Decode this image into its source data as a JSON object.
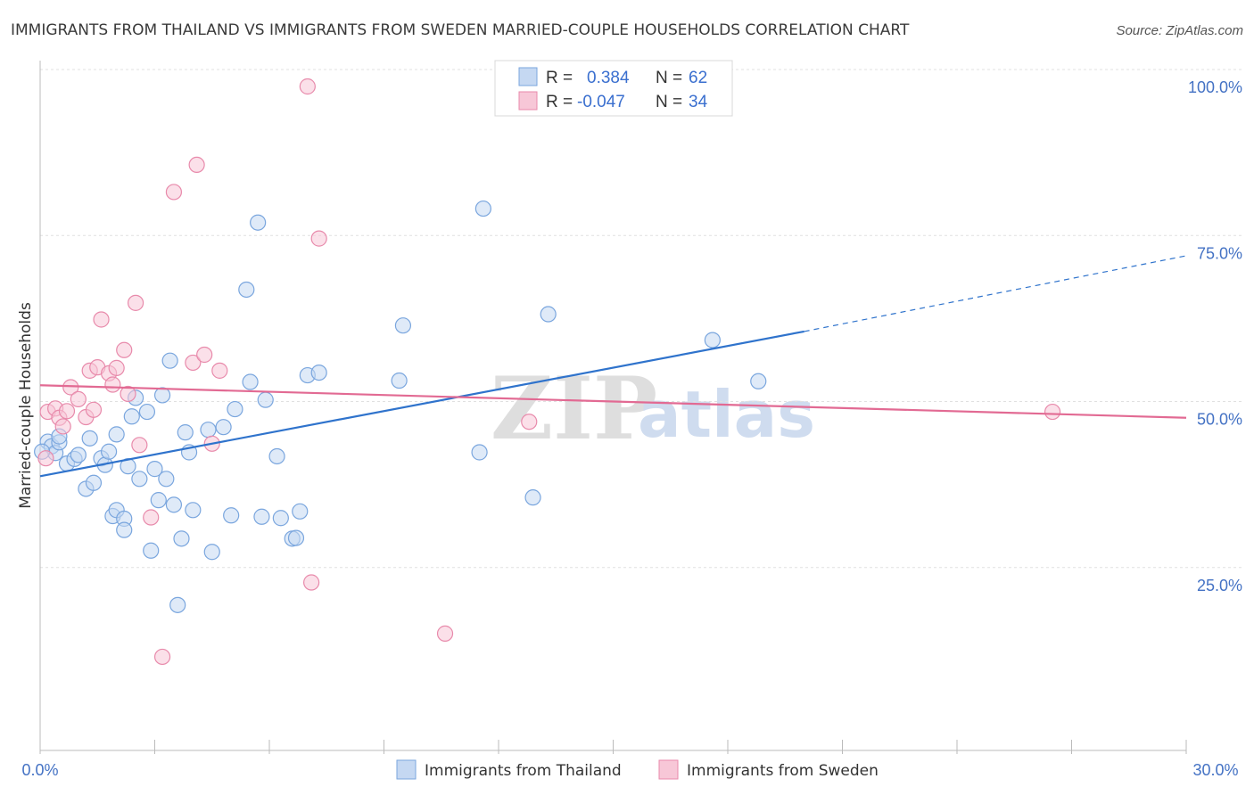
{
  "chart_data": {
    "type": "scatter",
    "title": "IMMIGRANTS FROM THAILAND VS IMMIGRANTS FROM SWEDEN MARRIED-COUPLE HOUSEHOLDS CORRELATION CHART",
    "source": "Source: ZipAtlas.com",
    "ylabel": "Married-couple Households",
    "xlabel": "",
    "xlim": [
      0,
      30
    ],
    "ylim": [
      0,
      103
    ],
    "x_tick_labels": [
      "0.0%",
      "30.0%"
    ],
    "y_ticks": [
      25,
      50,
      75,
      100
    ],
    "y_tick_labels": [
      "25.0%",
      "50.0%",
      "75.0%",
      "100.0%"
    ],
    "watermark": {
      "zip": "ZIP",
      "atlas": "atlas"
    },
    "legend_stats": [
      {
        "r_label": "R =",
        "r_value": "0.384",
        "n_label": "N =",
        "n_value": "62"
      },
      {
        "r_label": "R =",
        "r_value": "-0.047",
        "n_label": "N =",
        "n_value": "34"
      }
    ],
    "series": [
      {
        "name": "Immigrants from Thailand",
        "color": "#7aa6de",
        "fill": "#c5d8f2",
        "trend": {
          "x": [
            0,
            20
          ],
          "y": [
            41.3,
            63.1
          ],
          "dashed_to_x": 30,
          "dashed_to_y": 74.5,
          "color": "#2f73cc"
        },
        "points": [
          [
            0.2,
            46.5
          ],
          [
            0.3,
            45.8
          ],
          [
            0.4,
            44.8
          ],
          [
            0.5,
            46.4
          ],
          [
            0.5,
            47.3
          ],
          [
            0.7,
            43.2
          ],
          [
            0.9,
            43.9
          ],
          [
            1.0,
            44.5
          ],
          [
            1.2,
            39.4
          ],
          [
            1.3,
            47.0
          ],
          [
            1.4,
            40.3
          ],
          [
            1.6,
            44.0
          ],
          [
            1.7,
            43.0
          ],
          [
            1.8,
            45.0
          ],
          [
            1.9,
            35.3
          ],
          [
            2.0,
            36.2
          ],
          [
            2.0,
            47.6
          ],
          [
            2.2,
            34.9
          ],
          [
            2.2,
            33.2
          ],
          [
            2.3,
            42.8
          ],
          [
            2.4,
            50.3
          ],
          [
            2.5,
            53.1
          ],
          [
            2.6,
            40.9
          ],
          [
            2.8,
            51.0
          ],
          [
            2.9,
            30.1
          ],
          [
            3.0,
            42.4
          ],
          [
            3.1,
            37.7
          ],
          [
            3.2,
            53.5
          ],
          [
            3.3,
            40.9
          ],
          [
            3.4,
            58.7
          ],
          [
            3.5,
            37.0
          ],
          [
            3.6,
            21.9
          ],
          [
            3.7,
            31.9
          ],
          [
            3.8,
            47.9
          ],
          [
            3.9,
            44.9
          ],
          [
            4.0,
            36.2
          ],
          [
            4.4,
            48.3
          ],
          [
            4.5,
            29.9
          ],
          [
            4.8,
            48.7
          ],
          [
            5.0,
            35.4
          ],
          [
            5.1,
            51.4
          ],
          [
            5.4,
            69.4
          ],
          [
            5.5,
            55.5
          ],
          [
            5.7,
            79.5
          ],
          [
            5.8,
            35.2
          ],
          [
            5.9,
            52.8
          ],
          [
            6.2,
            44.3
          ],
          [
            6.3,
            35.0
          ],
          [
            6.6,
            31.9
          ],
          [
            6.7,
            32.0
          ],
          [
            6.8,
            36.0
          ],
          [
            7.0,
            56.5
          ],
          [
            7.3,
            56.9
          ],
          [
            9.4,
            55.7
          ],
          [
            9.5,
            64.0
          ],
          [
            11.5,
            44.9
          ],
          [
            11.6,
            81.6
          ],
          [
            12.9,
            38.1
          ],
          [
            13.3,
            65.7
          ],
          [
            17.6,
            61.8
          ],
          [
            18.8,
            55.6
          ],
          [
            0.05,
            45.0
          ]
        ]
      },
      {
        "name": "Immigrants from Sweden",
        "color": "#e88aab",
        "fill": "#f7c7d7",
        "trend": {
          "x": [
            0,
            30
          ],
          "y": [
            55.0,
            50.1
          ],
          "color": "#e26a93"
        },
        "points": [
          [
            0.15,
            44.0
          ],
          [
            0.2,
            51.0
          ],
          [
            0.4,
            51.5
          ],
          [
            0.5,
            50.1
          ],
          [
            0.6,
            48.8
          ],
          [
            0.7,
            51.1
          ],
          [
            0.8,
            54.7
          ],
          [
            1.0,
            52.9
          ],
          [
            1.2,
            50.2
          ],
          [
            1.3,
            57.2
          ],
          [
            1.4,
            51.3
          ],
          [
            1.5,
            57.7
          ],
          [
            1.6,
            64.9
          ],
          [
            1.8,
            56.8
          ],
          [
            1.9,
            55.1
          ],
          [
            2.0,
            57.6
          ],
          [
            2.2,
            60.3
          ],
          [
            2.3,
            53.7
          ],
          [
            2.5,
            67.4
          ],
          [
            2.6,
            46.0
          ],
          [
            2.9,
            35.1
          ],
          [
            3.2,
            14.1
          ],
          [
            3.5,
            84.1
          ],
          [
            4.0,
            58.4
          ],
          [
            4.1,
            88.2
          ],
          [
            4.3,
            59.6
          ],
          [
            4.5,
            46.2
          ],
          [
            4.7,
            57.2
          ],
          [
            7.0,
            100.0
          ],
          [
            7.1,
            25.3
          ],
          [
            7.3,
            77.1
          ],
          [
            10.6,
            17.6
          ],
          [
            12.8,
            49.5
          ],
          [
            26.5,
            51.0
          ]
        ]
      }
    ]
  }
}
